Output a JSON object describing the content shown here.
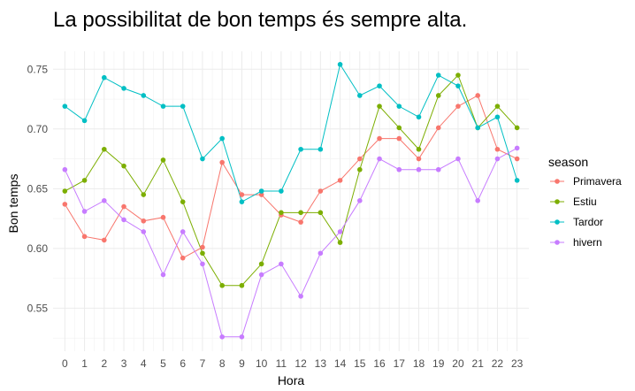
{
  "chart_data": {
    "type": "line",
    "title": "La possibilitat de bon temps és sempre alta.",
    "xlabel": "Hora",
    "ylabel": "Bon temps",
    "x": [
      0,
      1,
      2,
      3,
      4,
      5,
      6,
      7,
      8,
      9,
      10,
      11,
      12,
      13,
      14,
      15,
      16,
      17,
      18,
      19,
      20,
      21,
      22,
      23
    ],
    "x_ticks": [
      "0",
      "1",
      "2",
      "3",
      "4",
      "5",
      "6",
      "7",
      "8",
      "9",
      "10",
      "11",
      "12",
      "13",
      "14",
      "15",
      "16",
      "17",
      "18",
      "19",
      "20",
      "21",
      "22",
      "23"
    ],
    "xlim": [
      -0.6,
      23.6
    ],
    "ylim": [
      0.514,
      0.765
    ],
    "y_ticks": [
      0.55,
      0.6,
      0.65,
      0.7,
      0.75
    ],
    "y_tick_labels": [
      "0.55",
      "0.60",
      "0.65",
      "0.70",
      "0.75"
    ],
    "grid": true,
    "legend": {
      "title": "season",
      "position": "right"
    },
    "series": [
      {
        "name": "Primavera",
        "color": "#F8766D",
        "values": [
          0.637,
          0.61,
          0.607,
          0.635,
          0.623,
          0.626,
          0.592,
          0.601,
          0.672,
          0.645,
          0.645,
          0.628,
          0.622,
          0.648,
          0.657,
          0.675,
          0.692,
          0.692,
          0.675,
          0.701,
          0.719,
          0.728,
          0.683,
          0.675
        ]
      },
      {
        "name": "Estiu",
        "color": "#7CAE00",
        "values": [
          0.648,
          0.657,
          0.683,
          0.669,
          0.645,
          0.674,
          0.639,
          0.596,
          0.569,
          0.569,
          0.587,
          0.63,
          0.63,
          0.63,
          0.605,
          0.666,
          0.719,
          0.701,
          0.683,
          0.728,
          0.745,
          0.701,
          0.719,
          0.701
        ]
      },
      {
        "name": "Tardor",
        "color": "#00BFC4",
        "values": [
          0.719,
          0.707,
          0.743,
          0.734,
          0.728,
          0.719,
          0.719,
          0.675,
          0.692,
          0.639,
          0.648,
          0.648,
          0.683,
          0.683,
          0.754,
          0.728,
          0.736,
          0.719,
          0.71,
          0.745,
          0.736,
          0.701,
          0.71,
          0.657
        ]
      },
      {
        "name": "hivern",
        "color": "#C77CFF",
        "values": [
          0.666,
          0.631,
          0.64,
          0.624,
          0.614,
          0.578,
          0.614,
          0.587,
          0.526,
          0.526,
          0.578,
          0.587,
          0.56,
          0.596,
          0.614,
          0.64,
          0.675,
          0.666,
          0.666,
          0.666,
          0.675,
          0.64,
          0.675,
          0.684
        ]
      }
    ]
  }
}
